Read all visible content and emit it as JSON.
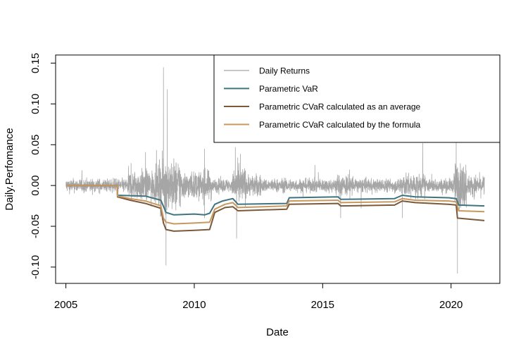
{
  "chart_data": {
    "type": "line",
    "xlabel": "Date",
    "ylabel": "Daily.Perfomance",
    "xlim": [
      2004.6,
      2021.9
    ],
    "ylim": [
      -0.12,
      0.16
    ],
    "x_ticks": [
      2005,
      2010,
      2015,
      2020
    ],
    "x_tick_labels": [
      "2005",
      "2010",
      "2015",
      "2020"
    ],
    "y_ticks": [
      -0.1,
      -0.05,
      0.0,
      0.05,
      0.1,
      0.15
    ],
    "y_tick_labels": [
      "-0.10",
      "-0.05",
      "0.00",
      "0.05",
      "0.10",
      "0.15"
    ],
    "grid": false,
    "legend_position": "top-right",
    "series": [
      {
        "name": "Daily Returns",
        "color": "#a6a6a6",
        "style": "noisy",
        "x_start": 2005.0,
        "x_end": 2021.3,
        "base_amplitude": 0.008,
        "volatility_events": [
          {
            "x": 2008.8,
            "y": 0.145
          },
          {
            "x": 2008.95,
            "y": 0.118
          },
          {
            "x": 2008.9,
            "y": -0.098
          },
          {
            "x": 2008.1,
            "y": 0.041
          },
          {
            "x": 2010.4,
            "y": 0.045
          },
          {
            "x": 2010.4,
            "y": -0.04
          },
          {
            "x": 2011.6,
            "y": 0.047
          },
          {
            "x": 2011.65,
            "y": -0.065
          },
          {
            "x": 2015.7,
            "y": -0.04
          },
          {
            "x": 2016.5,
            "y": -0.028
          },
          {
            "x": 2018.1,
            "y": -0.04
          },
          {
            "x": 2018.9,
            "y": 0.052
          },
          {
            "x": 2020.2,
            "y": 0.075
          },
          {
            "x": 2020.25,
            "y": -0.108
          }
        ]
      },
      {
        "name": "Parametric VaR",
        "color": "#3f7480",
        "points": [
          [
            2005.0,
            0.0
          ],
          [
            2007.0,
            0.0
          ],
          [
            2007.01,
            -0.012
          ],
          [
            2008.1,
            -0.013
          ],
          [
            2008.7,
            -0.018
          ],
          [
            2008.9,
            -0.033
          ],
          [
            2009.2,
            -0.036
          ],
          [
            2010.0,
            -0.035
          ],
          [
            2010.4,
            -0.036
          ],
          [
            2010.6,
            -0.034
          ],
          [
            2010.8,
            -0.023
          ],
          [
            2011.1,
            -0.019
          ],
          [
            2011.5,
            -0.016
          ],
          [
            2011.7,
            -0.023
          ],
          [
            2013.6,
            -0.022
          ],
          [
            2013.7,
            -0.015
          ],
          [
            2015.6,
            -0.014
          ],
          [
            2015.7,
            -0.017
          ],
          [
            2017.8,
            -0.016
          ],
          [
            2018.1,
            -0.012
          ],
          [
            2018.6,
            -0.014
          ],
          [
            2019.9,
            -0.015
          ],
          [
            2020.2,
            -0.016
          ],
          [
            2020.3,
            -0.024
          ],
          [
            2021.3,
            -0.025
          ]
        ]
      },
      {
        "name": "Parametric CVaR calculated as an average",
        "color": "#7b5a3c",
        "points": [
          [
            2005.0,
            0.0
          ],
          [
            2007.0,
            0.0
          ],
          [
            2007.01,
            -0.014
          ],
          [
            2007.5,
            -0.018
          ],
          [
            2008.1,
            -0.022
          ],
          [
            2008.7,
            -0.028
          ],
          [
            2008.8,
            -0.046
          ],
          [
            2008.9,
            -0.054
          ],
          [
            2009.2,
            -0.056
          ],
          [
            2010.0,
            -0.055
          ],
          [
            2010.6,
            -0.054
          ],
          [
            2010.8,
            -0.033
          ],
          [
            2011.2,
            -0.027
          ],
          [
            2011.5,
            -0.026
          ],
          [
            2011.7,
            -0.031
          ],
          [
            2013.6,
            -0.029
          ],
          [
            2013.7,
            -0.023
          ],
          [
            2015.6,
            -0.022
          ],
          [
            2015.7,
            -0.025
          ],
          [
            2017.8,
            -0.024
          ],
          [
            2018.1,
            -0.019
          ],
          [
            2018.6,
            -0.021
          ],
          [
            2019.9,
            -0.023
          ],
          [
            2020.2,
            -0.024
          ],
          [
            2020.25,
            -0.04
          ],
          [
            2021.3,
            -0.043
          ]
        ]
      },
      {
        "name": "Parametric CVaR calculated by the formula",
        "color": "#c9985f",
        "points": [
          [
            2005.0,
            0.0
          ],
          [
            2007.0,
            0.0
          ],
          [
            2007.01,
            -0.013
          ],
          [
            2007.5,
            -0.016
          ],
          [
            2008.1,
            -0.019
          ],
          [
            2008.7,
            -0.025
          ],
          [
            2008.8,
            -0.04
          ],
          [
            2008.9,
            -0.045
          ],
          [
            2009.2,
            -0.047
          ],
          [
            2010.0,
            -0.046
          ],
          [
            2010.6,
            -0.045
          ],
          [
            2010.8,
            -0.029
          ],
          [
            2011.2,
            -0.023
          ],
          [
            2011.5,
            -0.021
          ],
          [
            2011.7,
            -0.027
          ],
          [
            2013.6,
            -0.025
          ],
          [
            2013.7,
            -0.019
          ],
          [
            2015.6,
            -0.018
          ],
          [
            2015.7,
            -0.021
          ],
          [
            2017.8,
            -0.02
          ],
          [
            2018.1,
            -0.016
          ],
          [
            2018.6,
            -0.018
          ],
          [
            2019.9,
            -0.019
          ],
          [
            2020.2,
            -0.02
          ],
          [
            2020.3,
            -0.031
          ],
          [
            2021.3,
            -0.032
          ]
        ]
      }
    ]
  }
}
